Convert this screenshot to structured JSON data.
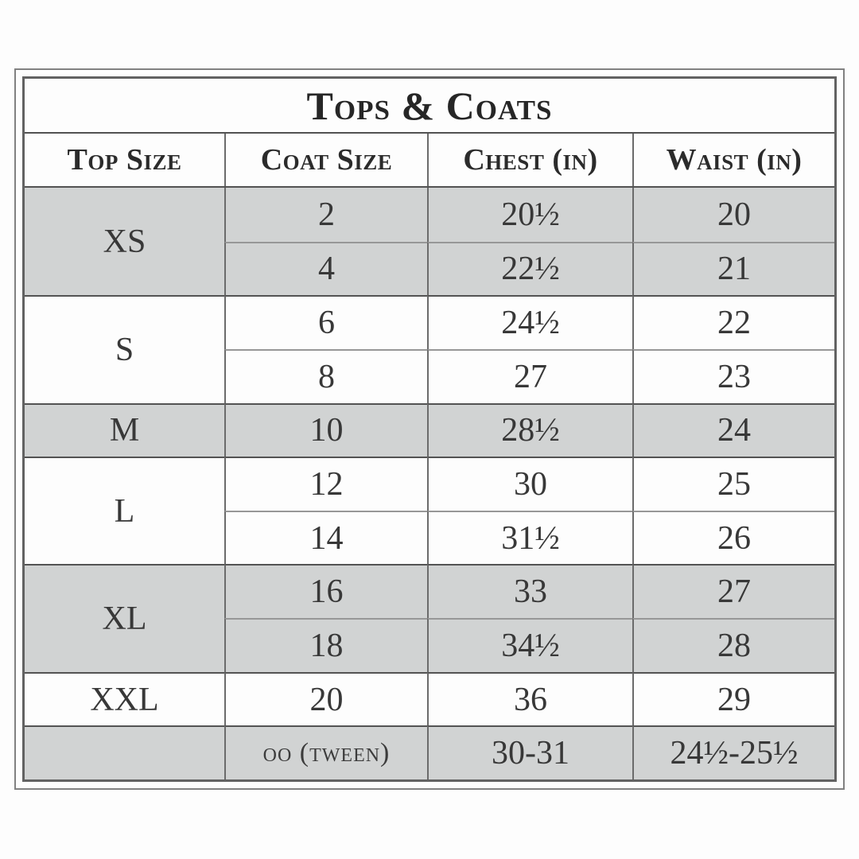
{
  "title": "Tops & Coats",
  "columns": [
    "Top Size",
    "Coat Size",
    "Chest (in)",
    "Waist (in)"
  ],
  "top_sizes": [
    {
      "label": "XS"
    },
    {
      "label": "S"
    },
    {
      "label": "M"
    },
    {
      "label": "L"
    },
    {
      "label": "XL"
    },
    {
      "label": "XXL"
    },
    {
      "label": ""
    }
  ],
  "rows": [
    {
      "coat": "2",
      "chest": "20½",
      "waist": "20"
    },
    {
      "coat": "4",
      "chest": "22½",
      "waist": "21"
    },
    {
      "coat": "6",
      "chest": "24½",
      "waist": "22"
    },
    {
      "coat": "8",
      "chest": "27",
      "waist": "23"
    },
    {
      "coat": "10",
      "chest": "28½",
      "waist": "24"
    },
    {
      "coat": "12",
      "chest": "30",
      "waist": "25"
    },
    {
      "coat": "14",
      "chest": "31½",
      "waist": "26"
    },
    {
      "coat": "16",
      "chest": "33",
      "waist": "27"
    },
    {
      "coat": "18",
      "chest": "34½",
      "waist": "28"
    },
    {
      "coat": "20",
      "chest": "36",
      "waist": "29"
    },
    {
      "coat": "oo (tween)",
      "chest": "30-31",
      "waist": "24½-25½"
    }
  ],
  "colors": {
    "shaded_row": "#d1d3d3",
    "border_dark": "#535353",
    "border_light": "#979797",
    "outer_border": "#818181",
    "text": "#383838"
  },
  "chart_data": {
    "type": "table",
    "title": "Tops & Coats",
    "columns": [
      "Top Size",
      "Coat Size",
      "Chest (in)",
      "Waist (in)"
    ],
    "rows": [
      [
        "XS",
        "2",
        "20½",
        "20"
      ],
      [
        "XS",
        "4",
        "22½",
        "21"
      ],
      [
        "S",
        "6",
        "24½",
        "22"
      ],
      [
        "S",
        "8",
        "27",
        "23"
      ],
      [
        "M",
        "10",
        "28½",
        "24"
      ],
      [
        "L",
        "12",
        "30",
        "25"
      ],
      [
        "L",
        "14",
        "31½",
        "26"
      ],
      [
        "XL",
        "16",
        "33",
        "27"
      ],
      [
        "XL",
        "18",
        "34½",
        "28"
      ],
      [
        "XXL",
        "20",
        "36",
        "29"
      ],
      [
        "",
        "oo (tween)",
        "30-31",
        "24½-25½"
      ]
    ],
    "layout": {
      "merged_top_size_cells": true,
      "shaded_groups": [
        "XS",
        "M",
        "XL",
        "tween-row"
      ],
      "double_outer_border": true
    }
  }
}
